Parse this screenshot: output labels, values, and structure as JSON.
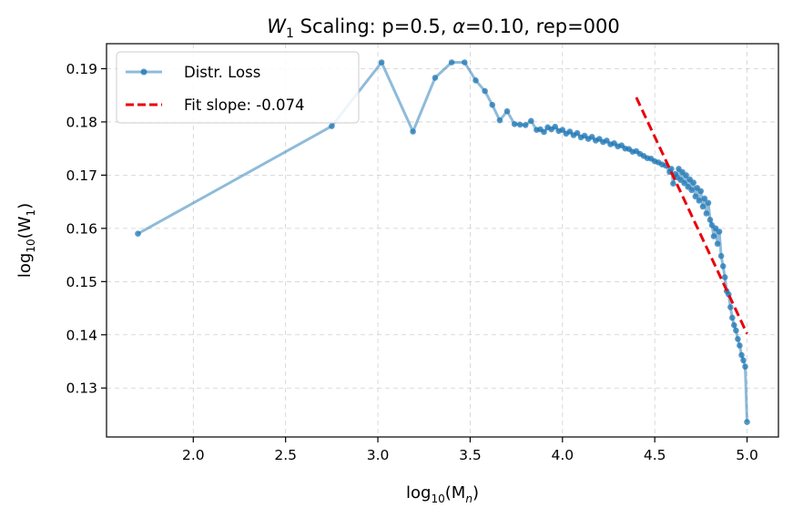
{
  "chart_data": {
    "type": "line",
    "title_prefix": "W",
    "title_sub": "1",
    "title_rest": " Scaling: p=0.5, ",
    "title_alpha": "α",
    "title_rest2": "=0.10, rep=000",
    "xlabel_prefix": "log",
    "xlabel_sub": "10",
    "xlabel_arg": "(M",
    "xlabel_arg_sub": "n",
    "xlabel_close": ")",
    "ylabel_prefix": "log",
    "ylabel_sub": "10",
    "ylabel_arg": "(W",
    "ylabel_arg_sub": "1",
    "ylabel_close": ")",
    "xlim": [
      1.53,
      5.17
    ],
    "ylim": [
      0.1208,
      0.1947
    ],
    "xticks": [
      "2.0",
      "2.5",
      "3.0",
      "3.5",
      "4.0",
      "4.5",
      "5.0"
    ],
    "xtick_values": [
      2.0,
      2.5,
      3.0,
      3.5,
      4.0,
      4.5,
      5.0
    ],
    "yticks": [
      "0.13",
      "0.14",
      "0.15",
      "0.16",
      "0.17",
      "0.18",
      "0.19"
    ],
    "ytick_values": [
      0.13,
      0.14,
      0.15,
      0.16,
      0.17,
      0.18,
      0.19
    ],
    "grid": true,
    "legend_position": "upper-left",
    "series": [
      {
        "name": "Distr. Loss",
        "color": "#1f77b4",
        "x": [
          1.7,
          2.75,
          3.02,
          3.19,
          3.31,
          3.4,
          3.47,
          3.53,
          3.58,
          3.62,
          3.66,
          3.7,
          3.74,
          3.77,
          3.8,
          3.83,
          3.86,
          3.88,
          3.9,
          3.92,
          3.94,
          3.96,
          3.98,
          4.0,
          4.02,
          4.04,
          4.06,
          4.08,
          4.1,
          4.12,
          4.14,
          4.16,
          4.18,
          4.2,
          4.22,
          4.24,
          4.26,
          4.28,
          4.3,
          4.32,
          4.34,
          4.36,
          4.38,
          4.4,
          4.42,
          4.44,
          4.46,
          4.48,
          4.5,
          4.52,
          4.54,
          4.56,
          4.58,
          4.59,
          4.6,
          4.61,
          4.62,
          4.63,
          4.64,
          4.65,
          4.66,
          4.67,
          4.68,
          4.69,
          4.7,
          4.71,
          4.72,
          4.73,
          4.74,
          4.75,
          4.76,
          4.77,
          4.78,
          4.79,
          4.8,
          4.81,
          4.82,
          4.83,
          4.84,
          4.85,
          4.86,
          4.87,
          4.88,
          4.89,
          4.9,
          4.91,
          4.92,
          4.93,
          4.94,
          4.95,
          4.96,
          4.97,
          4.98,
          4.99,
          5.0
        ],
        "y": [
          0.159,
          0.1792,
          0.1912,
          0.1782,
          0.1883,
          0.1912,
          0.1912,
          0.1878,
          0.1858,
          0.1832,
          0.1803,
          0.182,
          0.1796,
          0.1795,
          0.1794,
          0.1802,
          0.1785,
          0.1786,
          0.1781,
          0.179,
          0.1786,
          0.1791,
          0.1783,
          0.1785,
          0.1778,
          0.1782,
          0.1775,
          0.1779,
          0.1771,
          0.1774,
          0.1768,
          0.1772,
          0.1765,
          0.1768,
          0.1762,
          0.1765,
          0.1758,
          0.176,
          0.1754,
          0.1756,
          0.175,
          0.1749,
          0.1744,
          0.1745,
          0.174,
          0.1736,
          0.1732,
          0.1731,
          0.1726,
          0.1724,
          0.172,
          0.1718,
          0.1706,
          0.1712,
          0.1684,
          0.1702,
          0.1696,
          0.1712,
          0.1691,
          0.1706,
          0.1685,
          0.17,
          0.1678,
          0.1692,
          0.1672,
          0.1686,
          0.166,
          0.1676,
          0.1652,
          0.167,
          0.1641,
          0.1656,
          0.1628,
          0.1648,
          0.1616,
          0.1606,
          0.1585,
          0.16,
          0.1571,
          0.1594,
          0.1548,
          0.1529,
          0.1508,
          0.1482,
          0.1476,
          0.1452,
          0.1432,
          0.1418,
          0.1408,
          0.1392,
          0.138,
          0.1362,
          0.1352,
          0.134,
          0.1236
        ]
      },
      {
        "name": "Fit slope: -0.074",
        "color": "#e8000b",
        "x": [
          4.4,
          5.0
        ],
        "y": [
          0.1846,
          0.1402
        ]
      }
    ]
  }
}
